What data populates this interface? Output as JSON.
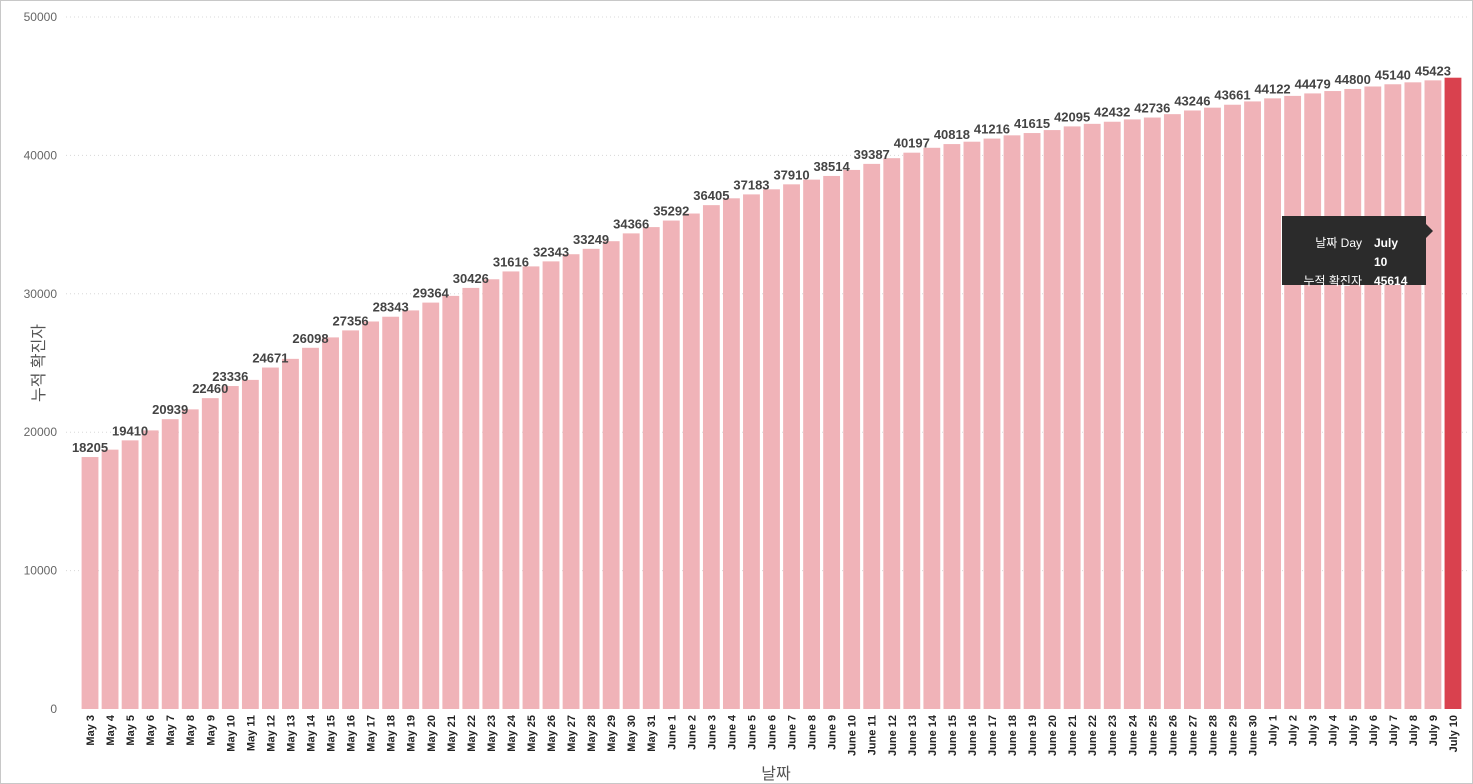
{
  "chart_data": {
    "type": "bar",
    "xlabel": "날짜",
    "ylabel": "누적 확진자",
    "ylim": [
      0,
      50000
    ],
    "yticks": [
      0,
      10000,
      20000,
      30000,
      40000,
      50000
    ],
    "ytick_labels": [
      "0",
      "10000",
      "20000",
      "30000",
      "40000",
      "50000"
    ],
    "grid": true,
    "bar_color": "#f0b3b8",
    "highlight_color": "#d9414e",
    "highlight_index": 68,
    "categories": [
      "May 3",
      "May 4",
      "May 5",
      "May 6",
      "May 7",
      "May 8",
      "May 9",
      "May 10",
      "May 11",
      "May 12",
      "May 13",
      "May 14",
      "May 15",
      "May 16",
      "May 17",
      "May 18",
      "May 19",
      "May 20",
      "May 21",
      "May 22",
      "May 23",
      "May 24",
      "May 25",
      "May 26",
      "May 27",
      "May 28",
      "May 29",
      "May 30",
      "May 31",
      "June 1",
      "June 2",
      "June 3",
      "June 4",
      "June 5",
      "June 6",
      "June 7",
      "June 8",
      "June 9",
      "June 10",
      "June 11",
      "June 12",
      "June 13",
      "June 14",
      "June 15",
      "June 16",
      "June 17",
      "June 18",
      "June 19",
      "June 20",
      "June 21",
      "June 22",
      "June 23",
      "June 24",
      "June 25",
      "June 26",
      "June 27",
      "June 28",
      "June 29",
      "June 30",
      "July 1",
      "July 2",
      "July 3",
      "July 4",
      "July 5",
      "July 6",
      "July 7",
      "July 8",
      "July 9",
      "July 10"
    ],
    "values": [
      18205,
      18740,
      19410,
      20130,
      20939,
      21650,
      22460,
      23336,
      23780,
      24671,
      25300,
      26098,
      26850,
      27356,
      28000,
      28343,
      28800,
      29364,
      29850,
      30426,
      31050,
      31616,
      31980,
      32343,
      32860,
      33249,
      33800,
      34366,
      34820,
      35292,
      35800,
      36405,
      36900,
      37183,
      37550,
      37910,
      38250,
      38514,
      38950,
      39387,
      39800,
      40197,
      40550,
      40818,
      40990,
      41216,
      41450,
      41615,
      41830,
      42095,
      42280,
      42432,
      42600,
      42736,
      42980,
      43246,
      43450,
      43661,
      43900,
      44122,
      44300,
      44479,
      44650,
      44800,
      44980,
      45140,
      45280,
      45423,
      45614
    ],
    "data_labels": [
      {
        "index": 0,
        "text": "18205"
      },
      {
        "index": 2,
        "text": "19410"
      },
      {
        "index": 4,
        "text": "20939"
      },
      {
        "index": 6,
        "text": "22460"
      },
      {
        "index": 7,
        "text": "23336"
      },
      {
        "index": 9,
        "text": "24671"
      },
      {
        "index": 11,
        "text": "26098"
      },
      {
        "index": 13,
        "text": "27356"
      },
      {
        "index": 15,
        "text": "28343"
      },
      {
        "index": 17,
        "text": "29364"
      },
      {
        "index": 19,
        "text": "30426"
      },
      {
        "index": 21,
        "text": "31616"
      },
      {
        "index": 23,
        "text": "32343"
      },
      {
        "index": 25,
        "text": "33249"
      },
      {
        "index": 27,
        "text": "34366"
      },
      {
        "index": 29,
        "text": "35292"
      },
      {
        "index": 31,
        "text": "36405"
      },
      {
        "index": 33,
        "text": "37183"
      },
      {
        "index": 35,
        "text": "37910"
      },
      {
        "index": 37,
        "text": "38514"
      },
      {
        "index": 39,
        "text": "39387"
      },
      {
        "index": 41,
        "text": "40197"
      },
      {
        "index": 43,
        "text": "40818"
      },
      {
        "index": 45,
        "text": "41216"
      },
      {
        "index": 47,
        "text": "41615"
      },
      {
        "index": 49,
        "text": "42095"
      },
      {
        "index": 51,
        "text": "42432"
      },
      {
        "index": 53,
        "text": "42736"
      },
      {
        "index": 55,
        "text": "43246"
      },
      {
        "index": 57,
        "text": "43661"
      },
      {
        "index": 59,
        "text": "44122"
      },
      {
        "index": 61,
        "text": "44479"
      },
      {
        "index": 63,
        "text": "44800"
      },
      {
        "index": 65,
        "text": "45140"
      },
      {
        "index": 67,
        "text": "45423"
      }
    ]
  },
  "tooltip": {
    "rows": [
      {
        "key": "날짜 Day",
        "value": "July 10"
      },
      {
        "key": "누적 확진자",
        "value": "45614"
      }
    ],
    "background": "#2b2b2b"
  }
}
